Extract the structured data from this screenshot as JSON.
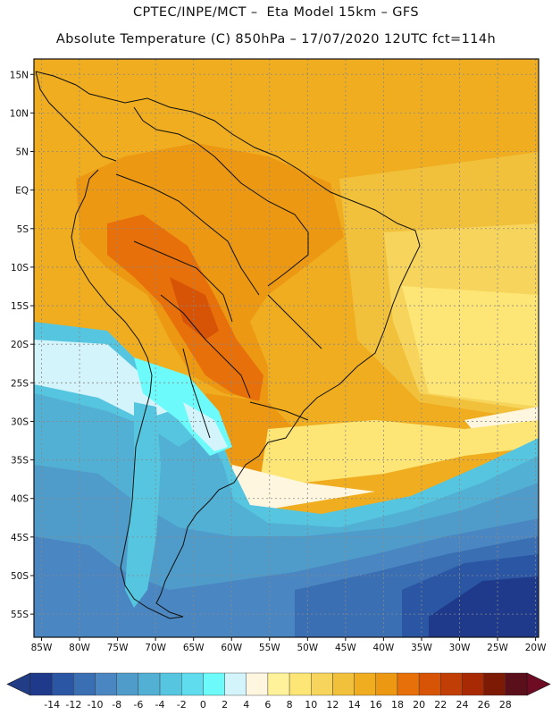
{
  "header": {
    "line1": "CPTEC/INPE/MCT –  Eta Model 15km – GFS",
    "line2": "Absolute Temperature (C) 850hPa – 17/07/2020 12UTC fct=114h"
  },
  "map": {
    "lat_ticks": [
      "15N",
      "10N",
      "5N",
      "EQ",
      "5S",
      "10S",
      "15S",
      "20S",
      "25S",
      "30S",
      "35S",
      "40S",
      "45S",
      "50S",
      "55S"
    ],
    "lon_ticks": [
      "85W",
      "80W",
      "75W",
      "70W",
      "65W",
      "60W",
      "55W",
      "50W",
      "45W",
      "40W",
      "35W",
      "30W",
      "25W",
      "20W"
    ]
  },
  "colorbar": {
    "labels": [
      "-14",
      "-12",
      "-10",
      "-8",
      "-6",
      "-4",
      "-2",
      "0",
      "2",
      "4",
      "6",
      "8",
      "10",
      "12",
      "14",
      "16",
      "18",
      "20",
      "22",
      "24",
      "26",
      "28"
    ],
    "colors": [
      "#1f3a8a",
      "#2a56a4",
      "#3b6fb4",
      "#4a87c2",
      "#4f9ccb",
      "#52b0d4",
      "#56c6e0",
      "#5fdcee",
      "#6cfafa",
      "#d3f4fb",
      "#fff6e0",
      "#fff29a",
      "#fde676",
      "#f7d55c",
      "#f2c13c",
      "#efad1f",
      "#ec9813",
      "#e8700a",
      "#d75407",
      "#c13e06",
      "#a72a05",
      "#7d1a05",
      "#5b0f1a"
    ],
    "low_color": "#213d86",
    "high_color": "#6d0c22"
  }
}
